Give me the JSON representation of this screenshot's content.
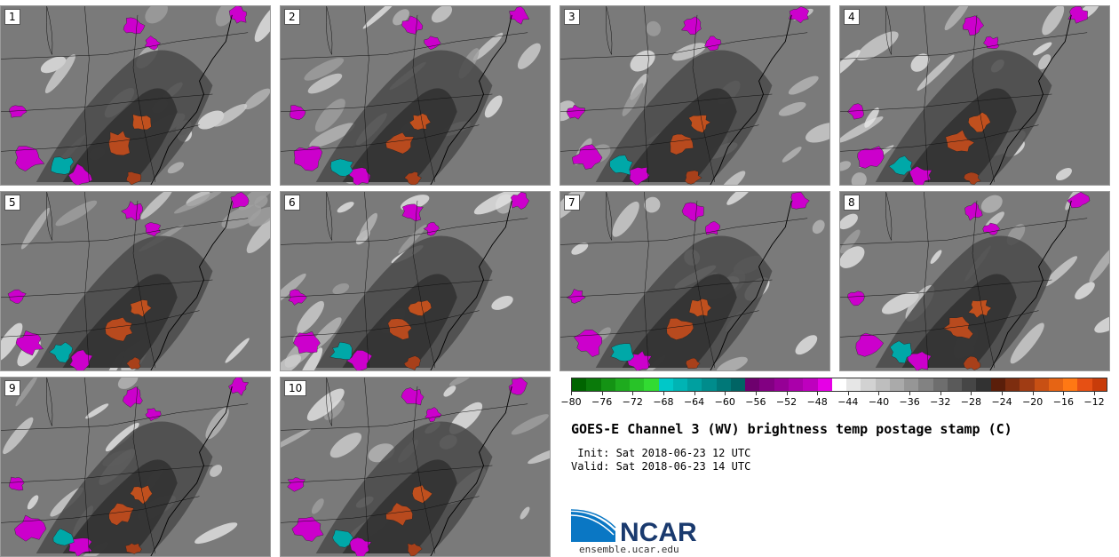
{
  "panels": [
    {
      "label": "1"
    },
    {
      "label": "2"
    },
    {
      "label": "3"
    },
    {
      "label": "4"
    },
    {
      "label": "5"
    },
    {
      "label": "6"
    },
    {
      "label": "7"
    },
    {
      "label": "8"
    },
    {
      "label": "9"
    },
    {
      "label": "10"
    }
  ],
  "colorbar": {
    "ticks": [
      "−80",
      "−76",
      "−72",
      "−68",
      "−64",
      "−60",
      "−56",
      "−52",
      "−48",
      "−44",
      "−40",
      "−36",
      "−32",
      "−28",
      "−24",
      "−20",
      "−16",
      "−12"
    ],
    "colors": [
      "#006400",
      "#0a7a0a",
      "#149314",
      "#1eab1e",
      "#28c328",
      "#32db32",
      "#00c8c8",
      "#00b4b4",
      "#00a0a0",
      "#008c8c",
      "#007878",
      "#006464",
      "#6e006e",
      "#820082",
      "#960096",
      "#aa00aa",
      "#be00be",
      "#e600e6",
      "#ffffff",
      "#e6e6e6",
      "#d2d2d2",
      "#bebebe",
      "#aaaaaa",
      "#969696",
      "#828282",
      "#6e6e6e",
      "#5a5a5a",
      "#464646",
      "#323232",
      "#5a1e0a",
      "#7d2d0f",
      "#a03c14",
      "#c85014",
      "#e66414",
      "#ff7814",
      "#e65014",
      "#c83c0a"
    ]
  },
  "title": "GOES-E Channel 3 (WV) brightness temp postage stamp (C)",
  "init_line": " Init: Sat 2018-06-23 12 UTC",
  "valid_line": "Valid: Sat 2018-06-23 14 UTC",
  "logo_text": "NCAR",
  "url": "ensemble.ucar.edu",
  "colors": {
    "magenta": "#cc00cc",
    "teal": "#00a8a8",
    "orange": "#b84a1e",
    "gray_dark": "#3c3c3c",
    "gray_mid": "#6e6e6e",
    "gray_light": "#b4b4b4"
  }
}
